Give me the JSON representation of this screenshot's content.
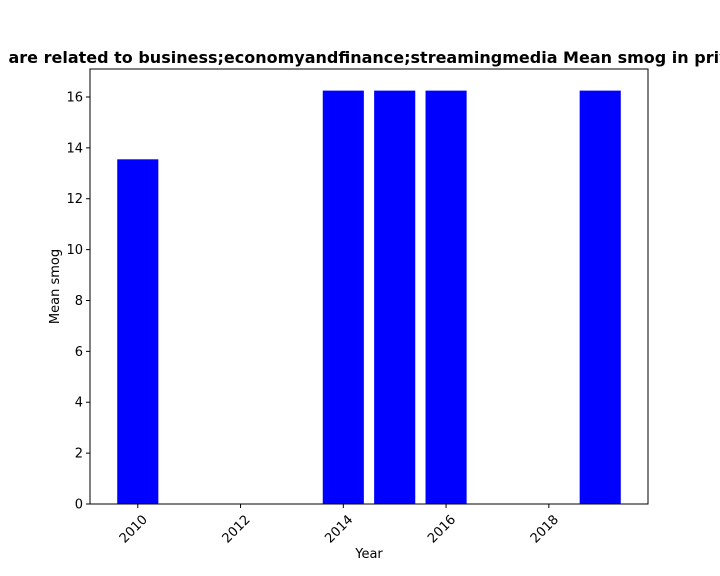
{
  "chart_data": {
    "type": "bar",
    "title": "are related to business;economyandfinance;streamingmedia Mean smog in priv",
    "xlabel": "Year",
    "ylabel": "Mean smog",
    "categories": [
      "2010",
      "2014",
      "2015",
      "2016",
      "2019"
    ],
    "x": [
      2010,
      2014,
      2015,
      2016,
      2019
    ],
    "values": [
      13.55,
      16.25,
      16.25,
      16.25,
      16.25
    ],
    "xlim": [
      2009.07,
      2019.93
    ],
    "ylim": [
      0,
      17.1
    ],
    "xticks": [
      2010,
      2012,
      2014,
      2016,
      2018
    ],
    "yticks": [
      0,
      2,
      4,
      6,
      8,
      10,
      12,
      14,
      16
    ],
    "bar_width": 0.8,
    "bar_color": "#0000ff",
    "grid": false
  }
}
